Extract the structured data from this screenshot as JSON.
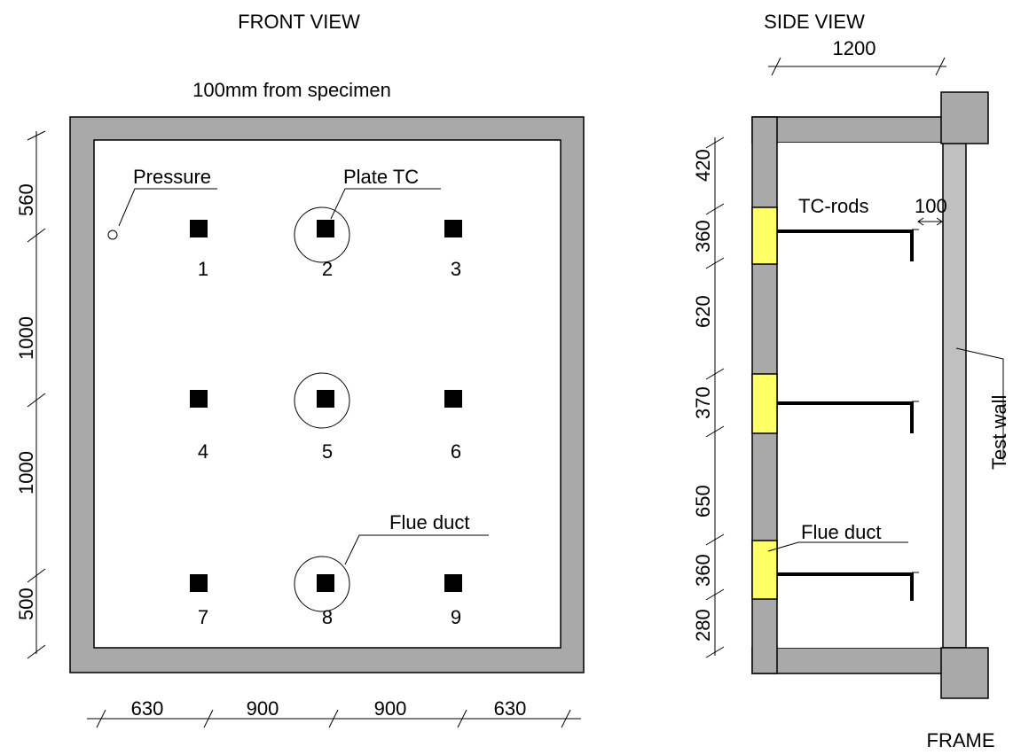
{
  "front_view": {
    "title": "FRONT VIEW",
    "subtitle": "100mm from specimen",
    "pressure_label": "Pressure",
    "plate_tc_label": "Plate TC",
    "flue_duct_label": "Flue duct",
    "points": [
      "1",
      "2",
      "3",
      "4",
      "5",
      "6",
      "7",
      "8",
      "9"
    ],
    "vertical_dims": [
      "560",
      "1000",
      "1000",
      "500"
    ],
    "horizontal_dims": [
      "630",
      "900",
      "900",
      "630"
    ]
  },
  "side_view": {
    "title": "SIDE VIEW",
    "width_dim": "1200",
    "tc_rods_label": "TC-rods",
    "gap_dim": "100",
    "flue_duct_label": "Flue duct",
    "test_wall_label": "Test wall",
    "frame_label": "FRAME",
    "vertical_dims": [
      "420",
      "360",
      "620",
      "370",
      "650",
      "360",
      "280"
    ],
    "colors": {
      "frame": "#a9a9a9",
      "duct": "#ffff66",
      "wall": "#c0c0c0"
    }
  }
}
